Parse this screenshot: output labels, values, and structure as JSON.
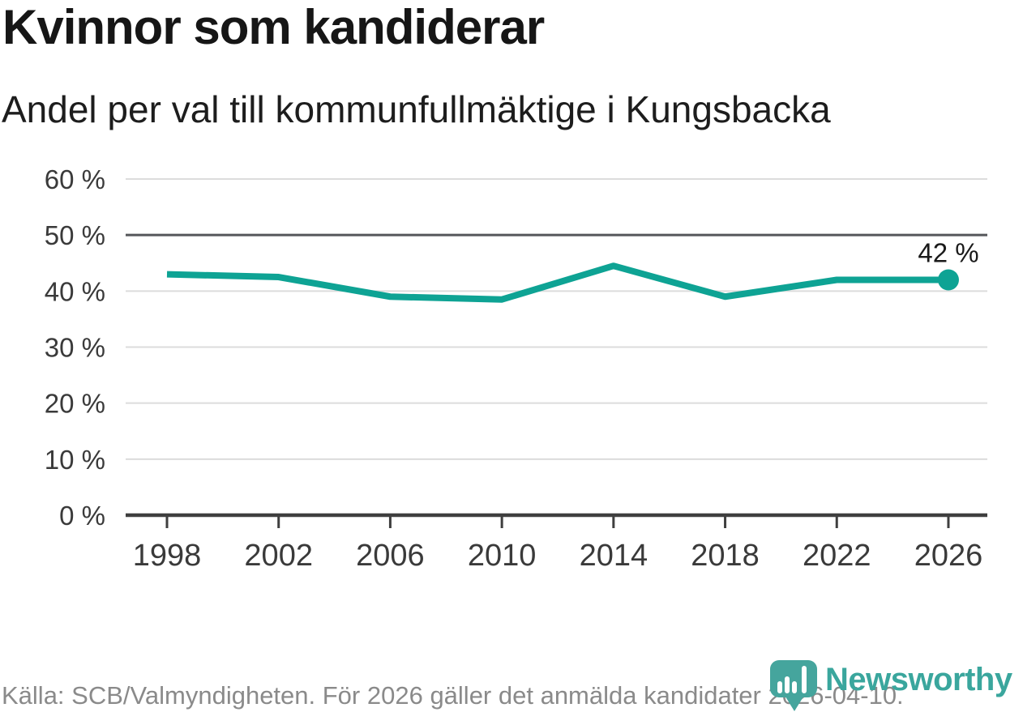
{
  "title": "Kvinnor som kandiderar",
  "subtitle": "Andel per val till kommunfullmäktige i Kungsbacka",
  "footer": {
    "source_text": "Källa: SCB/Valmyndigheten. För 2026 gäller det anmälda kandidater 2026-04-10."
  },
  "branding": {
    "logo_text": "Newsworthy",
    "logo_icon": "newsworthy-pin-barchart-icon"
  },
  "colors": {
    "line": "#0ea394",
    "logo_teal": "#45a59d",
    "grid_light": "#dcdcdc",
    "grid_dark": "#55565a",
    "axis": "#3f3f3f",
    "text_dark": "#1a1a1a",
    "text_axis": "#3a3a3a",
    "text_muted": "#8a8a8a",
    "background": "#ffffff"
  },
  "chart_data": {
    "type": "line",
    "title": "Kvinnor som kandiderar",
    "subtitle": "Andel per val till kommunfullmäktige i Kungsbacka",
    "x": [
      1998,
      2002,
      2006,
      2010,
      2014,
      2018,
      2022,
      2026
    ],
    "values": [
      43,
      42.5,
      39,
      38.5,
      44.5,
      39,
      42,
      42
    ],
    "unit": "%",
    "ylim": [
      0,
      60
    ],
    "ytick_step": 10,
    "ytick_labels": [
      "0 %",
      "10 %",
      "20 %",
      "30 %",
      "40 %",
      "50 %",
      "60 %"
    ],
    "xtick_labels": [
      "1998",
      "2002",
      "2006",
      "2010",
      "2014",
      "2018",
      "2022",
      "2026"
    ],
    "reference_line": 50,
    "grid": "horizontal",
    "legend": "none",
    "end_label": "42 %",
    "line_color": "#0ea394"
  }
}
